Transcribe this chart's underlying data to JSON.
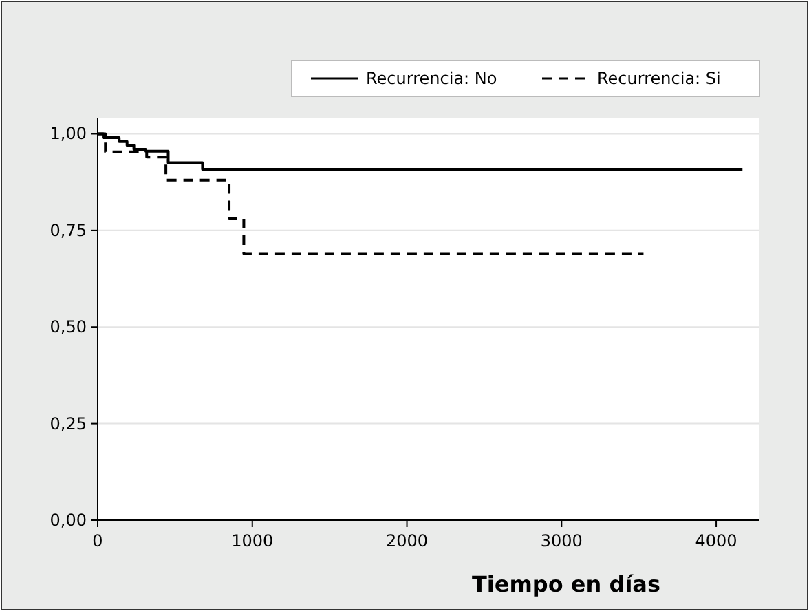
{
  "chart_data": {
    "type": "step",
    "xlabel": "Tiempo en días",
    "xlim": [
      0,
      4280
    ],
    "xticks": [
      0,
      1000,
      2000,
      3000,
      4000
    ],
    "ylim": [
      0,
      1.04
    ],
    "yticks": [
      {
        "value": 0,
        "label": "0,00"
      },
      {
        "value": 0.25,
        "label": "0,25"
      },
      {
        "value": 0.5,
        "label": "0,50"
      },
      {
        "value": 0.75,
        "label": "0,75"
      },
      {
        "value": 1,
        "label": "1,00"
      }
    ],
    "grid": "y",
    "legend": "top right",
    "series": [
      {
        "name": "Recurrencia: No",
        "color": "#000000",
        "line_style": "solid",
        "x": [
          0,
          36,
          139,
          190,
          234,
          311,
          456,
          678,
          4170
        ],
        "values": [
          1,
          0.99,
          0.98,
          0.97,
          0.96,
          0.955,
          0.925,
          0.908,
          0.908
        ]
      },
      {
        "name": "Recurrencia: Si",
        "color": "#000000",
        "line_style": "dashed",
        "x": [
          0,
          50,
          317,
          441,
          850,
          945,
          3530
        ],
        "values": [
          1,
          0.953,
          0.94,
          0.88,
          0.78,
          0.69,
          0.69
        ]
      }
    ]
  }
}
